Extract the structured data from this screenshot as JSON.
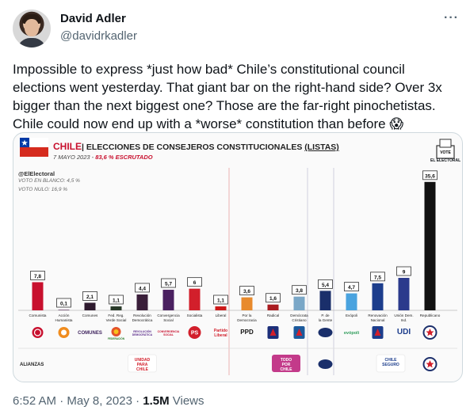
{
  "author": {
    "name": "David Adler",
    "handle": "@davidrkadler"
  },
  "tweet": {
    "text": "Impossible to express *just how bad* Chile’s constitutional council elections went yesterday. That giant bar on the right-hand side? Over 3x bigger than the next biggest one? Those are the far-right pinochetistas. Chile could now end up with a *worse* constitution than before 😱",
    "time": "6:52 AM · May 8, 2023 · ",
    "views_count": "1.5M",
    "views_label": " Views"
  },
  "chart_header": {
    "title_country": "CHILE",
    "title_separator": "|",
    "title_main": " ELECCIONES DE CONSEJEROS CONSTITUCIONALES ",
    "title_paren": "(LISTAS)",
    "date": "7 MAYO 2023 - ",
    "scrutiny": "83,6 % ESCRUTADO",
    "source": "@ElElectoral",
    "blank_vote": "VOTO EN BLANCO: 4,5 %",
    "null_vote": "VOTO NULO: 16,9 %",
    "ballot_label": "EL ELECTORAL",
    "ballot_text": "VOTE",
    "alliances_label": "ALIANZAS",
    "alliance_logos": [
      "UNIDAD PARA CHILE",
      "TODO POR CHILE",
      "CHILE SEGURO"
    ]
  },
  "chart_data": {
    "type": "bar",
    "ylim": [
      0,
      36
    ],
    "categories": [
      "Comunista",
      "Acción Humanista",
      "Comunes",
      "Fed. Reg. Verde Social",
      "Revolución Democrática",
      "Convergencia Social",
      "Socialista",
      "Liberal",
      "Por la Democracia",
      "Radical",
      "Demócrata Cristiano",
      "P. de la Gente",
      "Evópoli",
      "Renovación Nacional",
      "Unión Dem. Ind.",
      "Republicano"
    ],
    "values": [
      7.8,
      0.1,
      2.1,
      1.1,
      4.4,
      5.7,
      6,
      1.1,
      3.6,
      1.6,
      3.8,
      5.4,
      4.7,
      7.5,
      9,
      35.6
    ],
    "value_labels": [
      "7,8",
      "0,1",
      "2,1",
      "1,1",
      "4,4",
      "5,7",
      "6",
      "1,1",
      "3,6",
      "1,6",
      "3,8",
      "5,4",
      "4,7",
      "7,5",
      "9",
      "35,6"
    ],
    "colors": [
      "#c8102e",
      "#8a6d8a",
      "#2e1a2e",
      "#2a3a2a",
      "#3a1f3a",
      "#4a2060",
      "#d21f2b",
      "#cc1a1a",
      "#e88a2c",
      "#aa1c20",
      "#7aa7c7",
      "#1a2f6b",
      "#4aa3df",
      "#1c3d8c",
      "#2b3a8c",
      "#111111"
    ],
    "logo_texts": [
      "",
      "",
      "COMUNES",
      "FEDERACIÓN",
      "REVOLUCIÓN DEMOCRÁTICA",
      "CONVERGENCIA SOCIAL",
      "PS",
      "Partido Liberal",
      "PPD",
      "PR",
      "DC",
      "PDG",
      "evópoli",
      "RN",
      "UDI",
      "R"
    ]
  }
}
